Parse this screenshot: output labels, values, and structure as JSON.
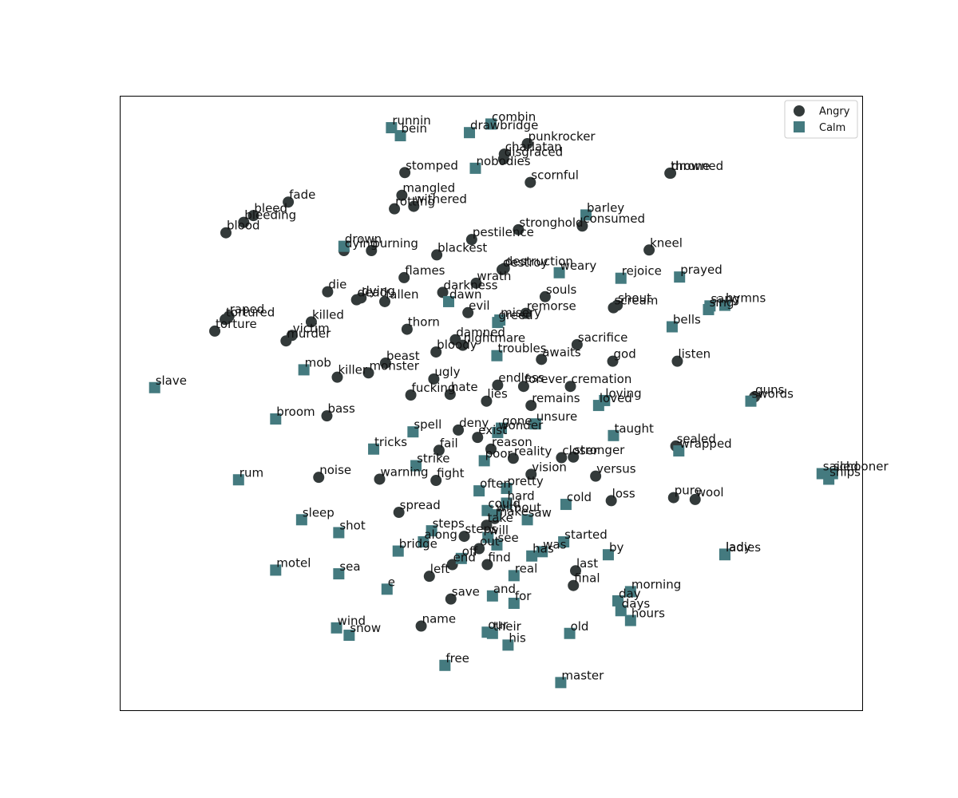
{
  "chart_data": {
    "type": "scatter",
    "title": "",
    "xlabel": "",
    "ylabel": "",
    "xticks": false,
    "yticks": false,
    "grid": false,
    "legend_position": "top-right",
    "xlim": [
      0,
      1000
    ],
    "ylim": [
      0,
      1000
    ],
    "series": [
      {
        "name": "Angry",
        "marker": "circle",
        "color": "#333a3a",
        "points": [
          {
            "label": "punkrocker",
            "x": 549,
            "y": 922
          },
          {
            "label": "charlatan",
            "x": 518,
            "y": 905
          },
          {
            "label": "disgraced",
            "x": 517,
            "y": 897
          },
          {
            "label": "stomped",
            "x": 384,
            "y": 875
          },
          {
            "label": "scornful",
            "x": 553,
            "y": 859
          },
          {
            "label": "throne",
            "x": 741,
            "y": 874
          },
          {
            "label": "drowned",
            "x": 742,
            "y": 874
          },
          {
            "label": "mangled",
            "x": 380,
            "y": 838
          },
          {
            "label": "withered",
            "x": 396,
            "y": 820
          },
          {
            "label": "rotting",
            "x": 370,
            "y": 816
          },
          {
            "label": "fade",
            "x": 227,
            "y": 827
          },
          {
            "label": "bleed",
            "x": 180,
            "y": 805
          },
          {
            "label": "bleeding",
            "x": 167,
            "y": 794
          },
          {
            "label": "blood",
            "x": 143,
            "y": 777
          },
          {
            "label": "stronghold",
            "x": 537,
            "y": 782
          },
          {
            "label": "consumed",
            "x": 623,
            "y": 788
          },
          {
            "label": "pestilence",
            "x": 474,
            "y": 766
          },
          {
            "label": "dying",
            "x": 302,
            "y": 748
          },
          {
            "label": "burning",
            "x": 339,
            "y": 748
          },
          {
            "label": "blackest",
            "x": 427,
            "y": 741
          },
          {
            "label": "kneel",
            "x": 713,
            "y": 749
          },
          {
            "label": "destroy",
            "x": 515,
            "y": 717
          },
          {
            "label": "destruction",
            "x": 518,
            "y": 719
          },
          {
            "label": "flames",
            "x": 383,
            "y": 704
          },
          {
            "label": "wrath",
            "x": 480,
            "y": 695
          },
          {
            "label": "die",
            "x": 280,
            "y": 681
          },
          {
            "label": "darkness",
            "x": 435,
            "y": 680
          },
          {
            "label": "dying",
            "x": 325,
            "y": 671
          },
          {
            "label": "dead",
            "x": 319,
            "y": 668
          },
          {
            "label": "fallen",
            "x": 357,
            "y": 665
          },
          {
            "label": "souls",
            "x": 573,
            "y": 673
          },
          {
            "label": "shout",
            "x": 670,
            "y": 659
          },
          {
            "label": "scream",
            "x": 665,
            "y": 655
          },
          {
            "label": "evil",
            "x": 469,
            "y": 647
          },
          {
            "label": "remorse",
            "x": 547,
            "y": 646
          },
          {
            "label": "raped",
            "x": 147,
            "y": 641
          },
          {
            "label": "tortured",
            "x": 142,
            "y": 636
          },
          {
            "label": "torture",
            "x": 128,
            "y": 617
          },
          {
            "label": "killed",
            "x": 258,
            "y": 632
          },
          {
            "label": "victim",
            "x": 232,
            "y": 610
          },
          {
            "label": "murder",
            "x": 224,
            "y": 601
          },
          {
            "label": "thorn",
            "x": 387,
            "y": 620
          },
          {
            "label": "damned",
            "x": 452,
            "y": 603
          },
          {
            "label": "nightmare",
            "x": 462,
            "y": 594
          },
          {
            "label": "bloody",
            "x": 426,
            "y": 583
          },
          {
            "label": "sacrifice",
            "x": 616,
            "y": 595
          },
          {
            "label": "beast",
            "x": 358,
            "y": 565
          },
          {
            "label": "monster",
            "x": 335,
            "y": 549
          },
          {
            "label": "killer",
            "x": 293,
            "y": 542
          },
          {
            "label": "awaits",
            "x": 568,
            "y": 571
          },
          {
            "label": "god",
            "x": 664,
            "y": 568
          },
          {
            "label": "listen",
            "x": 751,
            "y": 568
          },
          {
            "label": "ugly",
            "x": 423,
            "y": 539
          },
          {
            "label": "fucking",
            "x": 392,
            "y": 513
          },
          {
            "label": "hate",
            "x": 445,
            "y": 514
          },
          {
            "label": "endless",
            "x": 509,
            "y": 529
          },
          {
            "label": "lies",
            "x": 494,
            "y": 503
          },
          {
            "label": "forever",
            "x": 544,
            "y": 527
          },
          {
            "label": "cremation",
            "x": 607,
            "y": 527
          },
          {
            "label": "guns",
            "x": 855,
            "y": 510
          },
          {
            "label": "remains",
            "x": 554,
            "y": 496
          },
          {
            "label": "bass",
            "x": 279,
            "y": 479
          },
          {
            "label": "deny",
            "x": 456,
            "y": 456
          },
          {
            "label": "exist",
            "x": 482,
            "y": 444
          },
          {
            "label": "reason",
            "x": 500,
            "y": 425
          },
          {
            "label": "fail",
            "x": 430,
            "y": 423
          },
          {
            "label": "reality",
            "x": 530,
            "y": 410
          },
          {
            "label": "stronger",
            "x": 611,
            "y": 412
          },
          {
            "label": "closer",
            "x": 595,
            "y": 411
          },
          {
            "label": "sealed",
            "x": 749,
            "y": 430
          },
          {
            "label": "noise",
            "x": 268,
            "y": 379
          },
          {
            "label": "warning",
            "x": 350,
            "y": 376
          },
          {
            "label": "fight",
            "x": 426,
            "y": 374
          },
          {
            "label": "vision",
            "x": 554,
            "y": 384
          },
          {
            "label": "versus",
            "x": 641,
            "y": 381
          },
          {
            "label": "pure",
            "x": 746,
            "y": 346
          },
          {
            "label": "wool",
            "x": 775,
            "y": 343
          },
          {
            "label": "loss",
            "x": 662,
            "y": 341
          },
          {
            "label": "spread",
            "x": 376,
            "y": 322
          },
          {
            "label": "take",
            "x": 494,
            "y": 301
          },
          {
            "label": "make",
            "x": 505,
            "y": 312
          },
          {
            "label": "steps",
            "x": 464,
            "y": 283
          },
          {
            "label": "out",
            "x": 484,
            "y": 263
          },
          {
            "label": "end",
            "x": 448,
            "y": 237
          },
          {
            "label": "find",
            "x": 495,
            "y": 237
          },
          {
            "label": "last",
            "x": 614,
            "y": 227
          },
          {
            "label": "left",
            "x": 417,
            "y": 218
          },
          {
            "label": "final",
            "x": 611,
            "y": 203
          },
          {
            "label": "save",
            "x": 446,
            "y": 181
          },
          {
            "label": "name",
            "x": 406,
            "y": 137
          }
        ]
      },
      {
        "name": "Calm",
        "marker": "square",
        "color": "#447a7f",
        "points": [
          {
            "label": "combin",
            "x": 500,
            "y": 954
          },
          {
            "label": "runnin",
            "x": 366,
            "y": 948
          },
          {
            "label": "drawbridge",
            "x": 471,
            "y": 940
          },
          {
            "label": "bein",
            "x": 378,
            "y": 935
          },
          {
            "label": "nobodies",
            "x": 479,
            "y": 882
          },
          {
            "label": "barley",
            "x": 628,
            "y": 806
          },
          {
            "label": "drown",
            "x": 302,
            "y": 755
          },
          {
            "label": "weary",
            "x": 592,
            "y": 712
          },
          {
            "label": "rejoice",
            "x": 675,
            "y": 703
          },
          {
            "label": "prayed",
            "x": 754,
            "y": 705
          },
          {
            "label": "dawn",
            "x": 443,
            "y": 665
          },
          {
            "label": "sang",
            "x": 795,
            "y": 658
          },
          {
            "label": "hymns",
            "x": 815,
            "y": 659
          },
          {
            "label": "sing",
            "x": 793,
            "y": 652
          },
          {
            "label": "greed",
            "x": 509,
            "y": 631
          },
          {
            "label": "misery",
            "x": 512,
            "y": 635
          },
          {
            "label": "bells",
            "x": 744,
            "y": 624
          },
          {
            "label": "troubles",
            "x": 508,
            "y": 577
          },
          {
            "label": "mob",
            "x": 248,
            "y": 554
          },
          {
            "label": "slave",
            "x": 47,
            "y": 525
          },
          {
            "label": "loving",
            "x": 653,
            "y": 504
          },
          {
            "label": "loved",
            "x": 645,
            "y": 496
          },
          {
            "label": "swords",
            "x": 850,
            "y": 503
          },
          {
            "label": "broom",
            "x": 210,
            "y": 474
          },
          {
            "label": "unsure",
            "x": 560,
            "y": 466
          },
          {
            "label": "gone",
            "x": 514,
            "y": 459
          },
          {
            "label": "wonder",
            "x": 509,
            "y": 452
          },
          {
            "label": "spell",
            "x": 395,
            "y": 453
          },
          {
            "label": "taught",
            "x": 665,
            "y": 447
          },
          {
            "label": "tricks",
            "x": 342,
            "y": 425
          },
          {
            "label": "wrapped",
            "x": 753,
            "y": 422
          },
          {
            "label": "poor",
            "x": 491,
            "y": 406
          },
          {
            "label": "strike",
            "x": 399,
            "y": 398
          },
          {
            "label": "rum",
            "x": 160,
            "y": 375
          },
          {
            "label": "schooner",
            "x": 960,
            "y": 385
          },
          {
            "label": "ships",
            "x": 955,
            "y": 376
          },
          {
            "label": "sailed",
            "x": 946,
            "y": 385
          },
          {
            "label": "often",
            "x": 484,
            "y": 357
          },
          {
            "label": "pretty",
            "x": 521,
            "y": 361
          },
          {
            "label": "hard",
            "x": 521,
            "y": 337
          },
          {
            "label": "could",
            "x": 495,
            "y": 325
          },
          {
            "label": "without",
            "x": 506,
            "y": 318
          },
          {
            "label": "cold",
            "x": 601,
            "y": 335
          },
          {
            "label": "saw",
            "x": 549,
            "y": 310
          },
          {
            "label": "sleep",
            "x": 245,
            "y": 310
          },
          {
            "label": "shot",
            "x": 295,
            "y": 289
          },
          {
            "label": "steps",
            "x": 420,
            "y": 292
          },
          {
            "label": "will",
            "x": 496,
            "y": 281
          },
          {
            "label": "see",
            "x": 508,
            "y": 269
          },
          {
            "label": "along",
            "x": 409,
            "y": 274
          },
          {
            "label": "started",
            "x": 598,
            "y": 274
          },
          {
            "label": "bridge",
            "x": 375,
            "y": 259
          },
          {
            "label": "off",
            "x": 460,
            "y": 247
          },
          {
            "label": "was",
            "x": 569,
            "y": 258
          },
          {
            "label": "has",
            "x": 555,
            "y": 251
          },
          {
            "label": "by",
            "x": 658,
            "y": 253
          },
          {
            "label": "lady",
            "x": 815,
            "y": 254
          },
          {
            "label": "ladies",
            "x": 815,
            "y": 253
          },
          {
            "label": "motel",
            "x": 210,
            "y": 228
          },
          {
            "label": "sea",
            "x": 295,
            "y": 222
          },
          {
            "label": "real",
            "x": 531,
            "y": 219
          },
          {
            "label": "e",
            "x": 360,
            "y": 197
          },
          {
            "label": "and",
            "x": 502,
            "y": 186
          },
          {
            "label": "for",
            "x": 531,
            "y": 174
          },
          {
            "label": "morning",
            "x": 688,
            "y": 193
          },
          {
            "label": "day",
            "x": 671,
            "y": 178
          },
          {
            "label": "days",
            "x": 675,
            "y": 162
          },
          {
            "label": "hours",
            "x": 688,
            "y": 146
          },
          {
            "label": "wind",
            "x": 292,
            "y": 134
          },
          {
            "label": "snow",
            "x": 309,
            "y": 122
          },
          {
            "label": "our",
            "x": 495,
            "y": 127
          },
          {
            "label": "their",
            "x": 502,
            "y": 125
          },
          {
            "label": "his",
            "x": 523,
            "y": 106
          },
          {
            "label": "old",
            "x": 606,
            "y": 125
          },
          {
            "label": "free",
            "x": 438,
            "y": 73
          },
          {
            "label": "master",
            "x": 594,
            "y": 45
          }
        ]
      }
    ]
  }
}
